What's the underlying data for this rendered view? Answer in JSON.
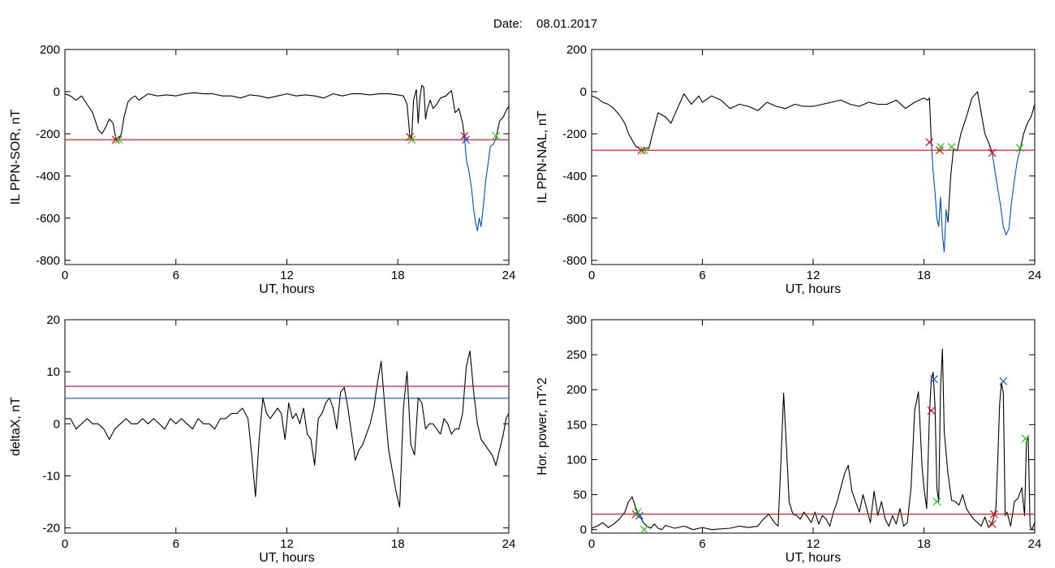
{
  "figure": {
    "date_label": "Date:",
    "date_value": "08.01.2017"
  },
  "colors": {
    "data_line": "#000000",
    "threshold_red": "#e0001b",
    "threshold_blue": "#0050c8",
    "storm_segment_blue": "#0050c8",
    "marker_red": "#e0001b",
    "marker_green": "#22c81e",
    "marker_blue": "#1a50d8",
    "frame": "#000000"
  },
  "chart_data": [
    {
      "id": "sor",
      "type": "line",
      "title": "",
      "xlabel": "UT, hours",
      "ylabel": "IL PPN-SOR, nT",
      "xlim": [
        0,
        24
      ],
      "ylim": [
        -820,
        200
      ],
      "xticks": [
        "0",
        "6",
        "12",
        "18",
        "24"
      ],
      "yticks": [
        "200",
        "0",
        "-200",
        "-400",
        "-600",
        "-800"
      ],
      "thresholds": [
        {
          "y": -228,
          "color": "red"
        }
      ],
      "series": [
        {
          "color": "black",
          "x": [
            0,
            0.3,
            0.6,
            0.9,
            1.2,
            1.5,
            1.8,
            2.0,
            2.2,
            2.4,
            2.6,
            2.75,
            2.9,
            3.05,
            3.2,
            3.4,
            3.6,
            3.8,
            4.0,
            4.5,
            5.0,
            5.5,
            6.0,
            6.5,
            7.0,
            7.5,
            8.0,
            8.5,
            9.0,
            9.5,
            10.0,
            10.5,
            11.0,
            11.5,
            12.0,
            12.5,
            13.0,
            13.5,
            14.0,
            14.5,
            15.0,
            15.5,
            16.0,
            16.5,
            17.0,
            17.5,
            18.0,
            18.3,
            18.5,
            18.65,
            18.75,
            18.85,
            19.0,
            19.1,
            19.2,
            19.3,
            19.4,
            19.5,
            19.6,
            19.75,
            19.9,
            20.1,
            20.3,
            20.6,
            20.9,
            21.1,
            21.3,
            21.5,
            21.6
          ],
          "y": [
            -10,
            -20,
            -40,
            -20,
            -60,
            -100,
            -180,
            -200,
            -170,
            -130,
            -150,
            -220,
            -228,
            -200,
            -120,
            -50,
            -30,
            -20,
            -40,
            -10,
            -20,
            -15,
            -20,
            -10,
            -5,
            -10,
            -10,
            -20,
            -20,
            -30,
            -15,
            -20,
            -30,
            -20,
            -10,
            -20,
            -15,
            -20,
            -30,
            -10,
            -20,
            -10,
            -10,
            -15,
            -10,
            -10,
            -15,
            -20,
            -60,
            -215,
            -220,
            -40,
            10,
            -150,
            -20,
            30,
            20,
            -130,
            -80,
            -40,
            -80,
            -60,
            -30,
            -20,
            5,
            -100,
            -80,
            -150,
            -210
          ]
        },
        {
          "color": "blue",
          "x": [
            21.6,
            21.7,
            21.85,
            22.0,
            22.1,
            22.2,
            22.3,
            22.4,
            22.5,
            22.55,
            22.65,
            22.75,
            22.85,
            23.0,
            23.15,
            23.3
          ],
          "y": [
            -210,
            -320,
            -380,
            -470,
            -560,
            -620,
            -660,
            -600,
            -640,
            -600,
            -520,
            -420,
            -360,
            -260,
            -250,
            -225
          ]
        },
        {
          "color": "black",
          "x": [
            23.3,
            23.5,
            23.7,
            23.85,
            24.0
          ],
          "y": [
            -225,
            -140,
            -120,
            -90,
            -70
          ]
        }
      ],
      "markers": [
        {
          "x": 2.75,
          "y": -228,
          "color": "red"
        },
        {
          "x": 2.9,
          "y": -228,
          "color": "green"
        },
        {
          "x": 18.65,
          "y": -215,
          "color": "red"
        },
        {
          "x": 18.75,
          "y": -228,
          "color": "green"
        },
        {
          "x": 21.6,
          "y": -210,
          "color": "red"
        },
        {
          "x": 21.68,
          "y": -228,
          "color": "blue"
        },
        {
          "x": 23.3,
          "y": -210,
          "color": "green"
        }
      ]
    },
    {
      "id": "nal",
      "type": "line",
      "title": "",
      "xlabel": "UT, hours",
      "ylabel": "IL PPN-NAL, nT",
      "xlim": [
        0,
        24
      ],
      "ylim": [
        -820,
        200
      ],
      "xticks": [
        "0",
        "6",
        "12",
        "18",
        "24"
      ],
      "yticks": [
        "200",
        "0",
        "-200",
        "-400",
        "-600",
        "-800"
      ],
      "thresholds": [
        {
          "y": -278,
          "color": "red"
        }
      ],
      "series": [
        {
          "color": "black",
          "x": [
            0,
            0.3,
            0.6,
            0.9,
            1.2,
            1.5,
            1.8,
            2.0,
            2.2,
            2.4,
            2.6,
            2.75,
            2.9,
            3.1,
            3.3,
            3.6,
            4.0,
            4.3,
            4.6,
            5.0,
            5.4,
            5.8,
            6.0,
            6.5,
            7.0,
            7.5,
            8.0,
            8.5,
            9.0,
            9.5,
            10.0,
            10.5,
            11.0,
            11.5,
            12.0,
            12.5,
            13.0,
            13.5,
            14.0,
            14.5,
            15.0,
            15.5,
            16.0,
            16.5,
            17.0,
            17.5,
            18.0,
            18.2,
            18.3,
            18.4
          ],
          "y": [
            -20,
            -30,
            -50,
            -60,
            -80,
            -110,
            -150,
            -200,
            -230,
            -260,
            -270,
            -278,
            -270,
            -270,
            -200,
            -100,
            -120,
            -150,
            -90,
            -10,
            -60,
            -20,
            -50,
            -20,
            -40,
            -80,
            -60,
            -70,
            -90,
            -50,
            -70,
            -80,
            -60,
            -70,
            -70,
            -60,
            -50,
            -40,
            -60,
            -70,
            -50,
            -60,
            -60,
            -40,
            -80,
            -50,
            -30,
            -40,
            -30,
            -240
          ]
        },
        {
          "color": "blue",
          "x": [
            18.4,
            18.5,
            18.6,
            18.7,
            18.8,
            18.9,
            19.0,
            19.1,
            19.2,
            19.3
          ],
          "y": [
            -240,
            -380,
            -480,
            -600,
            -640,
            -500,
            -680,
            -760,
            -560,
            -620
          ]
        },
        {
          "color": "black",
          "x": [
            19.3,
            19.45,
            19.6,
            19.8,
            20.0,
            20.3,
            20.6,
            20.9,
            21.1,
            21.3,
            21.5,
            21.7
          ],
          "y": [
            -620,
            -400,
            -270,
            -280,
            -200,
            -120,
            -30,
            0,
            -100,
            -200,
            -240,
            -290
          ]
        },
        {
          "color": "blue",
          "x": [
            21.7,
            21.85,
            22.0,
            22.15,
            22.3,
            22.45,
            22.6,
            22.75,
            22.9,
            23.05,
            23.2
          ],
          "y": [
            -290,
            -380,
            -460,
            -540,
            -640,
            -680,
            -650,
            -520,
            -420,
            -330,
            -280
          ]
        },
        {
          "color": "black",
          "x": [
            23.2,
            23.4,
            23.6,
            23.8,
            24.0
          ],
          "y": [
            -280,
            -200,
            -150,
            -120,
            -60
          ]
        }
      ],
      "markers": [
        {
          "x": 2.7,
          "y": -278,
          "color": "red"
        },
        {
          "x": 2.85,
          "y": -278,
          "color": "green"
        },
        {
          "x": 18.3,
          "y": -240,
          "color": "red"
        },
        {
          "x": 18.85,
          "y": -278,
          "color": "red"
        },
        {
          "x": 18.9,
          "y": -262,
          "color": "green"
        },
        {
          "x": 19.5,
          "y": -262,
          "color": "green"
        },
        {
          "x": 21.7,
          "y": -290,
          "color": "red"
        },
        {
          "x": 23.2,
          "y": -268,
          "color": "green"
        }
      ]
    },
    {
      "id": "deltax",
      "type": "line",
      "title": "",
      "xlabel": "UT, hours",
      "ylabel": "deltaX, nT",
      "xlim": [
        0,
        24
      ],
      "ylim": [
        -21,
        20
      ],
      "xticks": [
        "0",
        "6",
        "12",
        "18",
        "24"
      ],
      "yticks": [
        "20",
        "10",
        "0",
        "-10",
        "-20"
      ],
      "thresholds": [
        {
          "y": 7.2,
          "color": "red"
        },
        {
          "y": 4.9,
          "color": "blue"
        }
      ],
      "series": [
        {
          "color": "black",
          "x": [
            0,
            0.3,
            0.6,
            0.9,
            1.2,
            1.5,
            1.8,
            2.1,
            2.4,
            2.7,
            3.0,
            3.3,
            3.6,
            3.9,
            4.2,
            4.5,
            4.8,
            5.1,
            5.4,
            5.7,
            6.0,
            6.3,
            6.6,
            6.9,
            7.2,
            7.5,
            7.8,
            8.1,
            8.4,
            8.7,
            9.0,
            9.3,
            9.6,
            9.9,
            10.1,
            10.3,
            10.5,
            10.7,
            10.9,
            11.1,
            11.3,
            11.5,
            11.7,
            11.9,
            12.1,
            12.3,
            12.5,
            12.7,
            12.9,
            13.1,
            13.3,
            13.5,
            13.7,
            13.9,
            14.1,
            14.3,
            14.5,
            14.7,
            14.9,
            15.1,
            15.3,
            15.5,
            15.7,
            15.9,
            16.1,
            16.3,
            16.5,
            16.7,
            16.9,
            17.1,
            17.3,
            17.5,
            17.7,
            17.9,
            18.1,
            18.3,
            18.5,
            18.7,
            18.9,
            19.1,
            19.3,
            19.5,
            19.7,
            19.9,
            20.1,
            20.3,
            20.5,
            20.7,
            20.9,
            21.1,
            21.3,
            21.5,
            21.7,
            21.9,
            22.1,
            22.3,
            22.5,
            22.7,
            22.9,
            23.1,
            23.3,
            23.5,
            23.7,
            23.85,
            24.0
          ],
          "y": [
            1,
            1,
            -1,
            0,
            1,
            0,
            0,
            -1,
            -3,
            -1,
            0,
            1,
            0,
            0,
            1,
            0,
            1,
            0,
            -1,
            1,
            0,
            1,
            0,
            -1,
            1,
            0,
            0,
            -1,
            1,
            1,
            2,
            2,
            3,
            1,
            -6,
            -14,
            -3,
            5,
            2,
            1,
            2,
            3,
            2,
            -3,
            4,
            1,
            2,
            0,
            3,
            -2,
            -3,
            -8,
            1,
            2,
            4,
            5,
            3,
            -1,
            6,
            7,
            3,
            -2,
            -7,
            -5,
            -4,
            -2,
            0,
            3,
            8,
            12,
            3,
            -5,
            -9,
            -13,
            -16,
            3,
            10,
            -4,
            -6,
            5,
            4,
            -1,
            0,
            0,
            -1,
            -2,
            1,
            0,
            -2,
            -1,
            -1,
            2,
            11,
            14,
            6,
            0,
            -3,
            -4,
            -5,
            -6,
            -8,
            -5,
            -2,
            1,
            2
          ]
        }
      ],
      "markers": []
    },
    {
      "id": "power",
      "type": "line",
      "title": "",
      "xlabel": "UT, hours",
      "ylabel": "Hor. power, nT^2",
      "xlim": [
        0,
        24
      ],
      "ylim": [
        -5,
        300
      ],
      "xticks": [
        "0",
        "6",
        "12",
        "18",
        "24"
      ],
      "yticks": [
        "300",
        "250",
        "200",
        "150",
        "100",
        "50",
        "0"
      ],
      "thresholds": [
        {
          "y": 22,
          "color": "red"
        }
      ],
      "series": [
        {
          "color": "black",
          "x": [
            0,
            0.3,
            0.6,
            0.9,
            1.2,
            1.5,
            1.8,
            2.0,
            2.2,
            2.4,
            2.6,
            2.8,
            3.0,
            3.2,
            3.4,
            3.6,
            3.8,
            4.0,
            4.5,
            5.0,
            5.5,
            6.0,
            6.5,
            7.0,
            7.5,
            8.0,
            8.5,
            9.0,
            9.3,
            9.6,
            9.9,
            10.1,
            10.25,
            10.4,
            10.55,
            10.7,
            10.9,
            11.1,
            11.3,
            11.5,
            11.7,
            11.9,
            12.1,
            12.3,
            12.5,
            12.7,
            12.9,
            13.1,
            13.3,
            13.5,
            13.7,
            13.9,
            14.1,
            14.3,
            14.5,
            14.7,
            14.9,
            15.1,
            15.3,
            15.5,
            15.7,
            15.9,
            16.1,
            16.3,
            16.5,
            16.7,
            16.9,
            17.1,
            17.3,
            17.5,
            17.7,
            17.9,
            18.0,
            18.15,
            18.3,
            18.4,
            18.5,
            18.6,
            18.7,
            18.8,
            18.9,
            19.0,
            19.1,
            19.3,
            19.5,
            19.7,
            19.9,
            20.1,
            20.3,
            20.5,
            20.7,
            20.9,
            21.1,
            21.3,
            21.5,
            21.7,
            21.9,
            22.0,
            22.1,
            22.2,
            22.3,
            22.4,
            22.5,
            22.7,
            22.9,
            23.1,
            23.3,
            23.45,
            23.55,
            23.65,
            23.75,
            23.85,
            24.0
          ],
          "y": [
            2,
            5,
            10,
            3,
            8,
            15,
            25,
            40,
            47,
            30,
            20,
            10,
            5,
            2,
            8,
            2,
            0,
            6,
            2,
            5,
            0,
            3,
            0,
            1,
            2,
            5,
            3,
            5,
            15,
            22,
            10,
            5,
            95,
            195,
            120,
            40,
            22,
            20,
            15,
            25,
            18,
            10,
            25,
            8,
            20,
            15,
            5,
            25,
            40,
            60,
            80,
            92,
            55,
            40,
            25,
            50,
            30,
            10,
            55,
            20,
            40,
            15,
            5,
            20,
            8,
            30,
            5,
            10,
            60,
            170,
            197,
            90,
            60,
            30,
            165,
            215,
            225,
            175,
            60,
            40,
            205,
            258,
            140,
            80,
            42,
            40,
            35,
            50,
            30,
            22,
            15,
            10,
            5,
            18,
            3,
            10,
            30,
            100,
            180,
            210,
            195,
            20,
            25,
            5,
            40,
            45,
            60,
            20,
            125,
            132,
            5,
            0,
            10
          ]
        }
      ],
      "markers": [
        {
          "x": 2.4,
          "y": 22,
          "color": "red"
        },
        {
          "x": 2.5,
          "y": 25,
          "color": "green"
        },
        {
          "x": 2.6,
          "y": 20,
          "color": "blue"
        },
        {
          "x": 2.85,
          "y": 0,
          "color": "green"
        },
        {
          "x": 18.4,
          "y": 170,
          "color": "red"
        },
        {
          "x": 18.55,
          "y": 215,
          "color": "blue"
        },
        {
          "x": 18.7,
          "y": 40,
          "color": "green"
        },
        {
          "x": 21.7,
          "y": 8,
          "color": "red"
        },
        {
          "x": 21.8,
          "y": 22,
          "color": "red"
        },
        {
          "x": 22.3,
          "y": 212,
          "color": "blue"
        },
        {
          "x": 23.5,
          "y": 130,
          "color": "green"
        }
      ]
    }
  ]
}
